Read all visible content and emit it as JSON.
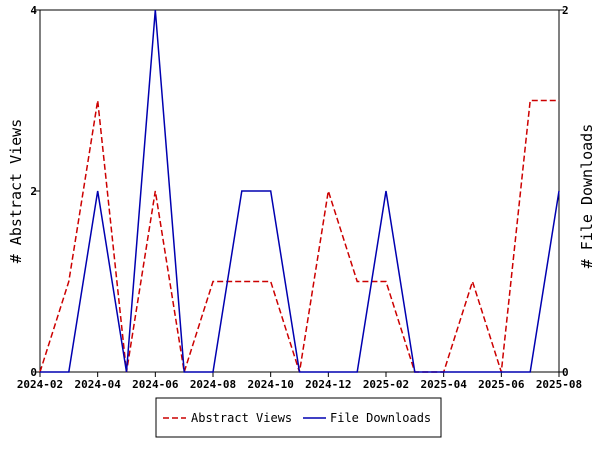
{
  "chart_data": {
    "type": "line",
    "title": "",
    "xlabel": "",
    "x": [
      "2024-02",
      "2024-03",
      "2024-04",
      "2024-05",
      "2024-06",
      "2024-07",
      "2024-08",
      "2024-09",
      "2024-10",
      "2024-11",
      "2024-12",
      "2025-01",
      "2025-02",
      "2025-03",
      "2025-04",
      "2025-05",
      "2025-06",
      "2025-07",
      "2025-08"
    ],
    "x_tick_labels": [
      "2024-02",
      "2024-04",
      "2024-06",
      "2024-08",
      "2024-10",
      "2024-12",
      "2025-02",
      "2025-04",
      "2025-06",
      "2025-08"
    ],
    "y_left": {
      "label": "# Abstract Views",
      "ylim": [
        0,
        4
      ],
      "ticks": [
        "0",
        "2",
        "4"
      ]
    },
    "y_right": {
      "label": "# File Downloads",
      "ylim": [
        0,
        2
      ],
      "ticks": [
        "0",
        "2"
      ]
    },
    "grid": false,
    "legend_position": "bottom",
    "series": [
      {
        "name": "Abstract Views",
        "axis": "left",
        "color": "#cc0000",
        "dash": "dashed",
        "points": [
          [
            "2024-02-01",
            0
          ],
          [
            "2024-03-01",
            1
          ],
          [
            "2024-04-01",
            3
          ],
          [
            "2024-05-01",
            0
          ],
          [
            "2024-06-01",
            2
          ],
          [
            "2024-07-01",
            0
          ],
          [
            "2024-08-01",
            1
          ],
          [
            "2024-09-01",
            1
          ],
          [
            "2024-10-01",
            1
          ],
          [
            "2024-11-01",
            0
          ],
          [
            "2024-12-01",
            2
          ],
          [
            "2025-01-01",
            1
          ],
          [
            "2025-02-01",
            1
          ],
          [
            "2025-03-01",
            0
          ],
          [
            "2025-04-01",
            0
          ],
          [
            "2025-05-01",
            1
          ],
          [
            "2025-06-01",
            0
          ],
          [
            "2025-07-01",
            3
          ],
          [
            "2025-08-01",
            3
          ]
        ]
      },
      {
        "name": "File Downloads",
        "axis": "right",
        "color": "#0000b0",
        "dash": "solid",
        "points": [
          [
            "2024-02-01",
            0
          ],
          [
            "2024-03-01",
            0
          ],
          [
            "2024-04-01",
            1
          ],
          [
            "2024-05-01",
            0
          ],
          [
            "2024-06-01",
            2
          ],
          [
            "2024-07-01",
            0
          ],
          [
            "2024-08-01",
            0
          ],
          [
            "2024-09-01",
            1
          ],
          [
            "2024-10-01",
            1
          ],
          [
            "2024-11-01",
            0
          ],
          [
            "2024-12-01",
            0
          ],
          [
            "2025-01-01",
            0
          ],
          [
            "2025-02-01",
            1
          ],
          [
            "2025-03-01",
            0
          ],
          [
            "2025-04-01",
            0
          ],
          [
            "2025-05-01",
            0
          ],
          [
            "2025-06-01",
            0
          ],
          [
            "2025-07-01",
            0
          ],
          [
            "2025-08-01",
            1
          ]
        ]
      }
    ]
  }
}
